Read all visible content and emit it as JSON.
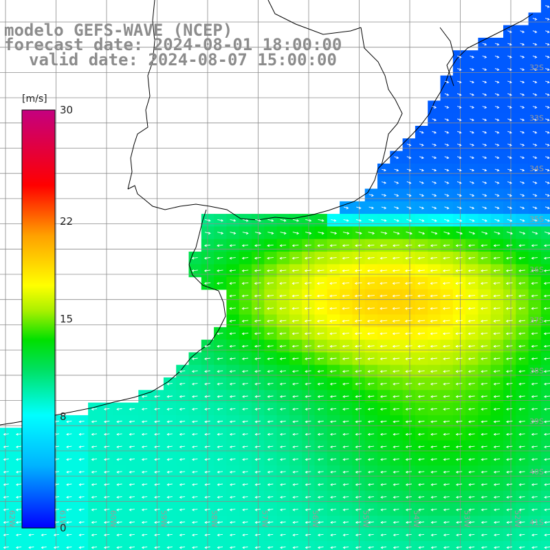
{
  "header": {
    "line1": "modelo GEFS-WAVE (NCEP)",
    "line2": "forecast date: 2024-08-01 18:00:00",
    "line3": "valid date: 2024-08-07 15:00:00"
  },
  "colorbar": {
    "unit": "[m/s]",
    "min": 0,
    "max": 30,
    "tick_labels": [
      "30",
      "22",
      "15",
      "8",
      "0"
    ],
    "tick_values": [
      30,
      22,
      15,
      8,
      0
    ],
    "colors": [
      "#0000ff",
      "#00c8ff",
      "#00ffff",
      "#00ee00",
      "#ffff00",
      "#ffa000",
      "#ff0000",
      "#e0007a",
      "#c0007a"
    ]
  },
  "lat_labels": [
    "32S",
    "33S",
    "34S",
    "35S",
    "36S",
    "37S",
    "38S",
    "39S",
    "40S",
    "41S"
  ],
  "lon_labels": [
    "62W",
    "61W",
    "60W",
    "59W",
    "58W",
    "57W",
    "56W",
    "55W",
    "54W",
    "53W",
    "52W",
    "51W"
  ],
  "colors": {
    "grid": "#8a8a8a",
    "coast": "#000000",
    "arrow": "#ffffff"
  },
  "icons": [
    "wind-arrow-icon"
  ]
}
